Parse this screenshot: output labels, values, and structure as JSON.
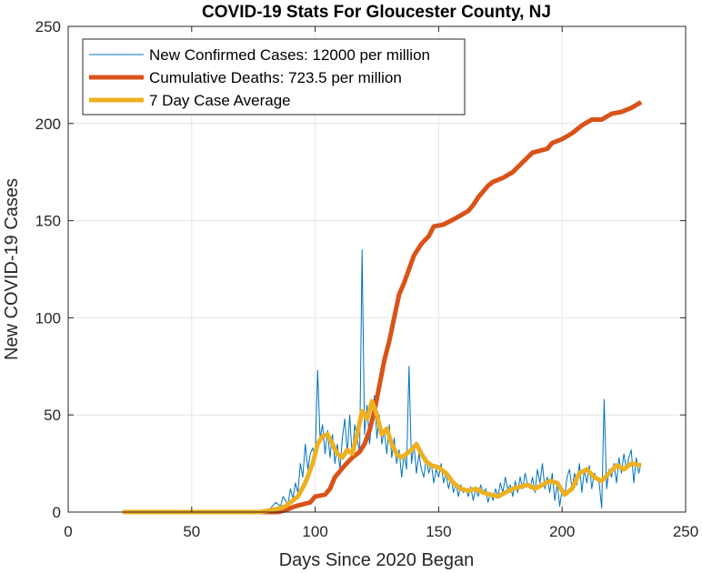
{
  "chart_data": {
    "type": "line",
    "title": "COVID-19 Stats For Gloucester County, NJ",
    "xlabel": "Days Since 2020 Began",
    "ylabel": "New COVID-19 Cases",
    "xlim": [
      0,
      250
    ],
    "ylim": [
      0,
      250
    ],
    "xticks": [
      "0",
      "50",
      "100",
      "150",
      "200",
      "250"
    ],
    "yticks": [
      "0",
      "50",
      "100",
      "150",
      "200",
      "250"
    ],
    "grid": true,
    "legend_position": "top-left",
    "series": [
      {
        "name": "New Confirmed Cases: 12000 per million",
        "color": "#0072BD",
        "style": "thin",
        "points": [
          [
            22,
            0
          ],
          [
            30,
            0
          ],
          [
            40,
            0
          ],
          [
            50,
            0
          ],
          [
            60,
            0
          ],
          [
            70,
            0
          ],
          [
            78,
            0
          ],
          [
            80,
            1
          ],
          [
            82,
            2
          ],
          [
            84,
            5
          ],
          [
            86,
            3
          ],
          [
            87,
            8
          ],
          [
            88,
            6
          ],
          [
            89,
            4
          ],
          [
            90,
            12
          ],
          [
            91,
            7
          ],
          [
            92,
            15
          ],
          [
            93,
            10
          ],
          [
            94,
            25
          ],
          [
            95,
            18
          ],
          [
            96,
            35
          ],
          [
            97,
            22
          ],
          [
            98,
            30
          ],
          [
            99,
            33
          ],
          [
            100,
            28
          ],
          [
            101,
            73
          ],
          [
            102,
            38
          ],
          [
            103,
            45
          ],
          [
            104,
            30
          ],
          [
            105,
            42
          ],
          [
            106,
            28
          ],
          [
            107,
            40
          ],
          [
            108,
            25
          ],
          [
            109,
            35
          ],
          [
            110,
            22
          ],
          [
            111,
            38
          ],
          [
            112,
            48
          ],
          [
            113,
            30
          ],
          [
            114,
            50
          ],
          [
            115,
            28
          ],
          [
            116,
            45
          ],
          [
            117,
            38
          ],
          [
            118,
            30
          ],
          [
            119,
            135
          ],
          [
            120,
            40
          ],
          [
            121,
            55
          ],
          [
            122,
            35
          ],
          [
            123,
            48
          ],
          [
            124,
            60
          ],
          [
            125,
            38
          ],
          [
            126,
            50
          ],
          [
            127,
            35
          ],
          [
            128,
            42
          ],
          [
            129,
            30
          ],
          [
            130,
            45
          ],
          [
            131,
            28
          ],
          [
            132,
            38
          ],
          [
            133,
            25
          ],
          [
            134,
            32
          ],
          [
            135,
            18
          ],
          [
            136,
            30
          ],
          [
            137,
            22
          ],
          [
            138,
            75
          ],
          [
            139,
            25
          ],
          [
            140,
            35
          ],
          [
            141,
            20
          ],
          [
            142,
            30
          ],
          [
            143,
            22
          ],
          [
            144,
            18
          ],
          [
            145,
            28
          ],
          [
            146,
            20
          ],
          [
            147,
            25
          ],
          [
            148,
            15
          ],
          [
            149,
            22
          ],
          [
            150,
            18
          ],
          [
            151,
            25
          ],
          [
            152,
            15
          ],
          [
            153,
            20
          ],
          [
            154,
            12
          ],
          [
            155,
            18
          ],
          [
            156,
            10
          ],
          [
            157,
            15
          ],
          [
            158,
            8
          ],
          [
            159,
            14
          ],
          [
            160,
            10
          ],
          [
            161,
            12
          ],
          [
            162,
            8
          ],
          [
            163,
            13
          ],
          [
            164,
            6
          ],
          [
            165,
            12
          ],
          [
            166,
            8
          ],
          [
            167,
            14
          ],
          [
            168,
            10
          ],
          [
            169,
            12
          ],
          [
            170,
            5
          ],
          [
            171,
            10
          ],
          [
            172,
            6
          ],
          [
            173,
            12
          ],
          [
            174,
            8
          ],
          [
            175,
            15
          ],
          [
            176,
            10
          ],
          [
            177,
            18
          ],
          [
            178,
            12
          ],
          [
            179,
            14
          ],
          [
            180,
            8
          ],
          [
            181,
            16
          ],
          [
            182,
            10
          ],
          [
            183,
            18
          ],
          [
            184,
            12
          ],
          [
            185,
            20
          ],
          [
            186,
            14
          ],
          [
            187,
            12
          ],
          [
            188,
            18
          ],
          [
            189,
            10
          ],
          [
            190,
            22
          ],
          [
            191,
            15
          ],
          [
            192,
            25
          ],
          [
            193,
            12
          ],
          [
            194,
            18
          ],
          [
            195,
            10
          ],
          [
            196,
            20
          ],
          [
            197,
            6
          ],
          [
            198,
            15
          ],
          [
            199,
            3
          ],
          [
            200,
            12
          ],
          [
            201,
            8
          ],
          [
            202,
            18
          ],
          [
            203,
            22
          ],
          [
            204,
            12
          ],
          [
            205,
            20
          ],
          [
            206,
            14
          ],
          [
            207,
            25
          ],
          [
            208,
            10
          ],
          [
            209,
            22
          ],
          [
            210,
            15
          ],
          [
            211,
            24
          ],
          [
            212,
            12
          ],
          [
            213,
            20
          ],
          [
            214,
            18
          ],
          [
            215,
            15
          ],
          [
            216,
            2
          ],
          [
            217,
            58
          ],
          [
            218,
            12
          ],
          [
            219,
            22
          ],
          [
            220,
            18
          ],
          [
            221,
            25
          ],
          [
            222,
            15
          ],
          [
            223,
            28
          ],
          [
            224,
            20
          ],
          [
            225,
            30
          ],
          [
            226,
            22
          ],
          [
            227,
            28
          ],
          [
            228,
            32
          ],
          [
            229,
            15
          ],
          [
            230,
            28
          ],
          [
            231,
            20
          ],
          [
            232,
            25
          ]
        ]
      },
      {
        "name": "Cumulative Deaths: 723.5 per million",
        "color": "#D95319",
        "style": "thick",
        "points": [
          [
            22,
            0
          ],
          [
            40,
            0
          ],
          [
            60,
            0
          ],
          [
            80,
            0
          ],
          [
            85,
            0
          ],
          [
            88,
            1
          ],
          [
            90,
            2
          ],
          [
            92,
            3
          ],
          [
            95,
            4
          ],
          [
            98,
            5
          ],
          [
            100,
            8
          ],
          [
            104,
            9
          ],
          [
            106,
            12
          ],
          [
            108,
            18
          ],
          [
            110,
            21
          ],
          [
            112,
            24
          ],
          [
            115,
            28
          ],
          [
            118,
            31
          ],
          [
            120,
            35
          ],
          [
            122,
            42
          ],
          [
            124,
            52
          ],
          [
            126,
            65
          ],
          [
            128,
            78
          ],
          [
            130,
            88
          ],
          [
            132,
            100
          ],
          [
            134,
            112
          ],
          [
            136,
            118
          ],
          [
            138,
            125
          ],
          [
            140,
            132
          ],
          [
            143,
            138
          ],
          [
            146,
            142
          ],
          [
            148,
            147
          ],
          [
            152,
            148
          ],
          [
            155,
            150
          ],
          [
            158,
            152
          ],
          [
            162,
            155
          ],
          [
            164,
            158
          ],
          [
            166,
            162
          ],
          [
            168,
            165
          ],
          [
            170,
            168
          ],
          [
            172,
            170
          ],
          [
            176,
            172
          ],
          [
            180,
            175
          ],
          [
            184,
            180
          ],
          [
            188,
            185
          ],
          [
            194,
            187
          ],
          [
            196,
            190
          ],
          [
            200,
            192
          ],
          [
            204,
            195
          ],
          [
            208,
            199
          ],
          [
            212,
            202
          ],
          [
            216,
            202
          ],
          [
            220,
            205
          ],
          [
            224,
            206
          ],
          [
            228,
            208
          ],
          [
            232,
            211
          ]
        ]
      },
      {
        "name": "7 Day Case Average",
        "color": "#EDB120",
        "style": "thick",
        "points": [
          [
            22,
            0
          ],
          [
            40,
            0
          ],
          [
            60,
            0
          ],
          [
            78,
            0
          ],
          [
            82,
            1
          ],
          [
            86,
            2
          ],
          [
            88,
            3
          ],
          [
            90,
            5
          ],
          [
            93,
            8
          ],
          [
            96,
            15
          ],
          [
            99,
            25
          ],
          [
            101,
            35
          ],
          [
            103,
            39
          ],
          [
            105,
            40
          ],
          [
            107,
            35
          ],
          [
            109,
            30
          ],
          [
            111,
            28
          ],
          [
            113,
            32
          ],
          [
            115,
            30
          ],
          [
            117,
            40
          ],
          [
            119,
            52
          ],
          [
            121,
            48
          ],
          [
            123,
            57
          ],
          [
            125,
            50
          ],
          [
            127,
            40
          ],
          [
            129,
            43
          ],
          [
            131,
            35
          ],
          [
            133,
            30
          ],
          [
            135,
            28
          ],
          [
            137,
            30
          ],
          [
            139,
            32
          ],
          [
            141,
            35
          ],
          [
            143,
            30
          ],
          [
            145,
            26
          ],
          [
            147,
            24
          ],
          [
            150,
            23
          ],
          [
            153,
            20
          ],
          [
            156,
            15
          ],
          [
            159,
            12
          ],
          [
            162,
            11
          ],
          [
            165,
            12
          ],
          [
            168,
            10
          ],
          [
            171,
            9
          ],
          [
            174,
            8
          ],
          [
            177,
            10
          ],
          [
            180,
            12
          ],
          [
            183,
            13
          ],
          [
            186,
            14
          ],
          [
            189,
            12
          ],
          [
            192,
            14
          ],
          [
            195,
            16
          ],
          [
            198,
            15
          ],
          [
            201,
            9
          ],
          [
            204,
            12
          ],
          [
            207,
            20
          ],
          [
            210,
            22
          ],
          [
            213,
            18
          ],
          [
            216,
            16
          ],
          [
            219,
            20
          ],
          [
            222,
            24
          ],
          [
            225,
            22
          ],
          [
            228,
            25
          ],
          [
            232,
            24
          ]
        ]
      }
    ]
  }
}
